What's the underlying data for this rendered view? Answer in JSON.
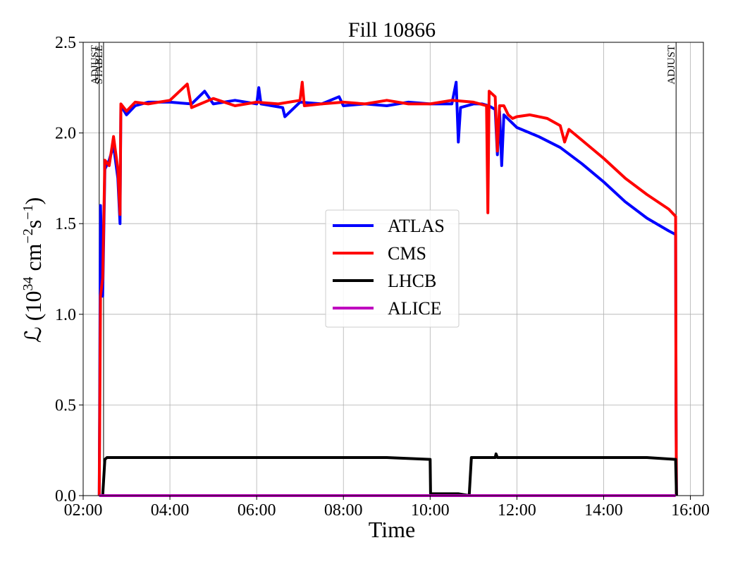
{
  "chart_data": {
    "type": "line",
    "title": "Fill 10866",
    "xlabel": "Time",
    "ylabel_prefix": "ℒ (10",
    "ylabel_exp1": "34",
    "ylabel_mid": " cm",
    "ylabel_exp2": "−2",
    "ylabel_s": "s",
    "ylabel_exp3": "−1",
    "ylabel_suffix": ")",
    "xlim": [
      2.0,
      16.3
    ],
    "ylim": [
      0.0,
      2.5
    ],
    "grid": true,
    "legend_position": "center-right",
    "x_ticks": [
      {
        "value": 2,
        "label": "02:00"
      },
      {
        "value": 4,
        "label": "04:00"
      },
      {
        "value": 6,
        "label": "06:00"
      },
      {
        "value": 8,
        "label": "08:00"
      },
      {
        "value": 10,
        "label": "10:00"
      },
      {
        "value": 12,
        "label": "12:00"
      },
      {
        "value": 14,
        "label": "14:00"
      },
      {
        "value": 16,
        "label": "16:00"
      }
    ],
    "y_ticks": [
      {
        "value": 0.0,
        "label": "0.0"
      },
      {
        "value": 0.5,
        "label": "0.5"
      },
      {
        "value": 1.0,
        "label": "1.0"
      },
      {
        "value": 1.5,
        "label": "1.5"
      },
      {
        "value": 2.0,
        "label": "2.0"
      },
      {
        "value": 2.5,
        "label": "2.5"
      }
    ],
    "markers": [
      {
        "x": 2.37,
        "label": "ADJUST"
      },
      {
        "x": 2.47,
        "label": "STABLE"
      },
      {
        "x": 15.67,
        "label": "ADJUST"
      }
    ],
    "series": [
      {
        "name": "ATLAS",
        "color": "#0000ff",
        "points": [
          [
            2.37,
            0.0
          ],
          [
            2.4,
            1.6
          ],
          [
            2.45,
            1.1
          ],
          [
            2.5,
            1.8
          ],
          [
            2.6,
            1.85
          ],
          [
            2.7,
            1.93
          ],
          [
            2.8,
            1.75
          ],
          [
            2.85,
            1.5
          ],
          [
            2.87,
            2.15
          ],
          [
            3.0,
            2.1
          ],
          [
            3.2,
            2.15
          ],
          [
            3.5,
            2.17
          ],
          [
            4.0,
            2.17
          ],
          [
            4.5,
            2.16
          ],
          [
            4.8,
            2.23
          ],
          [
            5.0,
            2.16
          ],
          [
            5.5,
            2.18
          ],
          [
            6.0,
            2.16
          ],
          [
            6.05,
            2.25
          ],
          [
            6.1,
            2.16
          ],
          [
            6.6,
            2.14
          ],
          [
            6.65,
            2.09
          ],
          [
            7.0,
            2.17
          ],
          [
            7.5,
            2.16
          ],
          [
            7.9,
            2.2
          ],
          [
            8.0,
            2.15
          ],
          [
            8.5,
            2.16
          ],
          [
            9.0,
            2.15
          ],
          [
            9.5,
            2.17
          ],
          [
            10.0,
            2.16
          ],
          [
            10.5,
            2.16
          ],
          [
            10.6,
            2.28
          ],
          [
            10.65,
            1.95
          ],
          [
            10.7,
            2.14
          ],
          [
            11.0,
            2.16
          ],
          [
            11.2,
            2.16
          ],
          [
            11.35,
            2.15
          ],
          [
            11.5,
            2.13
          ],
          [
            11.55,
            1.88
          ],
          [
            11.6,
            2.12
          ],
          [
            11.65,
            1.82
          ],
          [
            11.7,
            2.1
          ],
          [
            12.0,
            2.03
          ],
          [
            12.5,
            1.98
          ],
          [
            13.0,
            1.92
          ],
          [
            13.5,
            1.83
          ],
          [
            14.0,
            1.73
          ],
          [
            14.5,
            1.62
          ],
          [
            15.0,
            1.53
          ],
          [
            15.5,
            1.46
          ],
          [
            15.66,
            1.44
          ],
          [
            15.67,
            0.47
          ],
          [
            15.68,
            0.0
          ]
        ]
      },
      {
        "name": "CMS",
        "color": "#ff0000",
        "points": [
          [
            2.37,
            0.0
          ],
          [
            2.4,
            1.1
          ],
          [
            2.45,
            1.2
          ],
          [
            2.5,
            1.85
          ],
          [
            2.6,
            1.82
          ],
          [
            2.7,
            1.98
          ],
          [
            2.8,
            1.8
          ],
          [
            2.85,
            1.55
          ],
          [
            2.87,
            2.16
          ],
          [
            3.0,
            2.12
          ],
          [
            3.2,
            2.17
          ],
          [
            3.5,
            2.16
          ],
          [
            4.0,
            2.18
          ],
          [
            4.4,
            2.27
          ],
          [
            4.5,
            2.14
          ],
          [
            5.0,
            2.19
          ],
          [
            5.5,
            2.15
          ],
          [
            6.0,
            2.17
          ],
          [
            6.5,
            2.16
          ],
          [
            7.0,
            2.18
          ],
          [
            7.05,
            2.28
          ],
          [
            7.1,
            2.15
          ],
          [
            7.5,
            2.16
          ],
          [
            8.0,
            2.17
          ],
          [
            8.5,
            2.16
          ],
          [
            9.0,
            2.18
          ],
          [
            9.5,
            2.16
          ],
          [
            10.0,
            2.16
          ],
          [
            10.5,
            2.18
          ],
          [
            11.0,
            2.17
          ],
          [
            11.3,
            2.15
          ],
          [
            11.33,
            1.56
          ],
          [
            11.36,
            2.23
          ],
          [
            11.5,
            2.2
          ],
          [
            11.55,
            1.9
          ],
          [
            11.6,
            2.15
          ],
          [
            11.7,
            2.15
          ],
          [
            11.8,
            2.1
          ],
          [
            11.9,
            2.08
          ],
          [
            12.0,
            2.09
          ],
          [
            12.3,
            2.1
          ],
          [
            12.7,
            2.08
          ],
          [
            13.0,
            2.04
          ],
          [
            13.1,
            1.95
          ],
          [
            13.2,
            2.02
          ],
          [
            13.5,
            1.96
          ],
          [
            14.0,
            1.86
          ],
          [
            14.5,
            1.75
          ],
          [
            15.0,
            1.66
          ],
          [
            15.5,
            1.58
          ],
          [
            15.66,
            1.54
          ],
          [
            15.67,
            0.46
          ],
          [
            15.68,
            0.0
          ]
        ]
      },
      {
        "name": "LHCB",
        "color": "#000000",
        "points": [
          [
            2.37,
            0.0
          ],
          [
            2.45,
            0.0
          ],
          [
            2.5,
            0.2
          ],
          [
            2.55,
            0.21
          ],
          [
            3.0,
            0.21
          ],
          [
            4.0,
            0.21
          ],
          [
            5.0,
            0.21
          ],
          [
            6.0,
            0.21
          ],
          [
            7.0,
            0.21
          ],
          [
            8.0,
            0.21
          ],
          [
            9.0,
            0.21
          ],
          [
            10.0,
            0.2
          ],
          [
            10.01,
            0.01
          ],
          [
            10.65,
            0.01
          ],
          [
            10.9,
            0.0
          ],
          [
            10.95,
            0.21
          ],
          [
            11.5,
            0.21
          ],
          [
            11.52,
            0.23
          ],
          [
            11.55,
            0.21
          ],
          [
            12.0,
            0.21
          ],
          [
            13.0,
            0.21
          ],
          [
            14.0,
            0.21
          ],
          [
            15.0,
            0.21
          ],
          [
            15.66,
            0.2
          ],
          [
            15.68,
            0.0
          ]
        ]
      },
      {
        "name": "ALICE",
        "color": "#bf00bf",
        "points": [
          [
            2.37,
            0.0
          ],
          [
            15.66,
            0.0
          ]
        ]
      }
    ]
  }
}
